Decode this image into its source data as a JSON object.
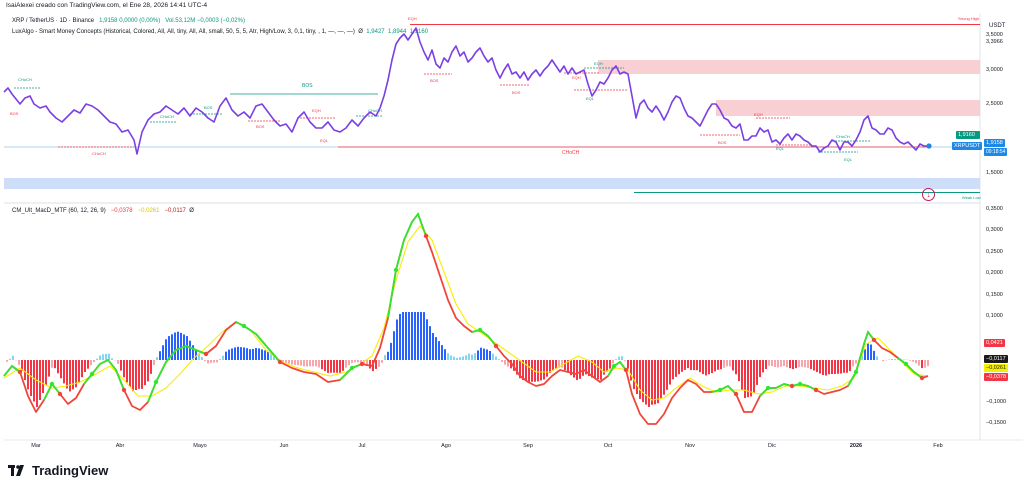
{
  "attribution": "IsaiAlexei creado con TradingView.com, el Ene 28, 2026 14:41 UTC-4",
  "symbol_line": {
    "symbol": "XRP / TetherUS · 1D · Binance",
    "ohlc": "1,9158  0,0000 (0,00%)",
    "volume": "Vol.53,12M  −0,0003 (−0,02%)"
  },
  "indicator_smc": {
    "name": "LuxAlgo - Smart Money Concepts (Historical, Colored, All, All, tiny, All, All, small, 50, 5, 5, Atr, High/Low, 3, 0,1, tiny, , 1, —, —, —)",
    "values": [
      "Ø",
      "1,9427",
      "1,8944",
      "1,9160"
    ]
  },
  "indicator_macd": {
    "name": "CM_Ult_MacD_MTF (60, 12, 26, 9)",
    "values": [
      "−0,0378",
      "−0,0261",
      "−0,0117",
      "Ø"
    ]
  },
  "currency": "USDT",
  "price_axis": {
    "ticks": [
      "3,5000",
      "3,3966",
      "3,0000",
      "2,5000",
      "1,5000"
    ],
    "labels": {
      "strong_high": "Strong High",
      "weak_low": "Weak Low"
    }
  },
  "price_tags": {
    "last_close_top": "1,9160",
    "symbol": "XRPUSDT",
    "last_close": "1,9158",
    "countdown": "09:18:54"
  },
  "macd_axis": {
    "ticks": [
      "0,3500",
      "0,3000",
      "0,2500",
      "0,2000",
      "0,1500",
      "0,1000",
      "−0,1000",
      "−0,1500"
    ]
  },
  "macd_tags": [
    "0,0421",
    "−0,0117",
    "−0,0261",
    "−0,0378"
  ],
  "time_axis": [
    "Mar",
    "Abr",
    "Mayo",
    "Jun",
    "Jul",
    "Ago",
    "Sep",
    "Oct",
    "Nov",
    "Dic",
    "2026",
    "Feb"
  ],
  "smc_labels": [
    "CHoCH",
    "BOS",
    "CHoCH",
    "BOS",
    "EQH",
    "CHoCH",
    "BOS",
    "EQL",
    "EQH",
    "CHoCH",
    "BOS",
    "EQH",
    "EQL",
    "CHoCH",
    "BOS",
    "BOS",
    "EQL",
    "BOS",
    "EQH",
    "CHoCH",
    "EQL",
    "EQH"
  ],
  "colors": {
    "price_line": "#7b3fe4",
    "bull": "#089981",
    "bear": "#f23645",
    "macd_up": "#2ee82e",
    "macd_down": "#f0453a",
    "signal": "#f5ee00",
    "hist_up": "#2962ff",
    "hist_down": "#f23645",
    "zone_supply": "#f7c7ca",
    "zone_demand": "#c9daf8",
    "pill": "#c2185b"
  },
  "brand": "TradingView",
  "icons": [
    "tradingview-logo-icon",
    "alert-icon",
    "last-price-marker-icon"
  ]
}
